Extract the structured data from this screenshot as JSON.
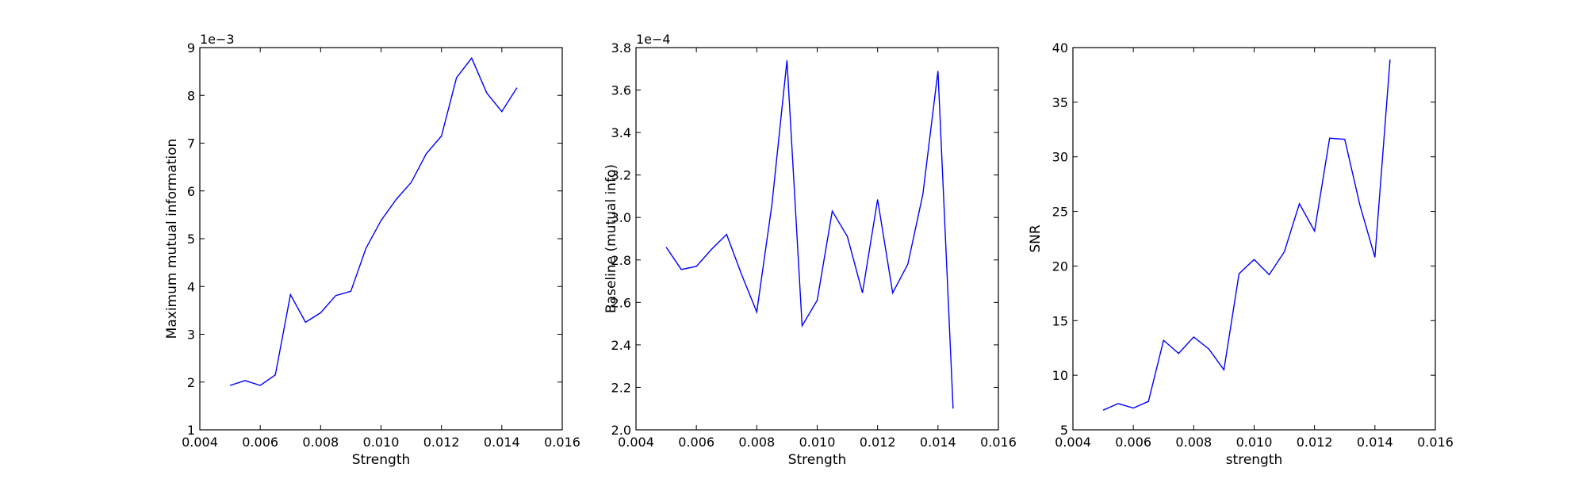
{
  "chart_data": [
    {
      "type": "line",
      "xlabel": "Strength",
      "ylabel": "Maximum mutual information",
      "multiplier": "1e−3",
      "xlim": [
        0.004,
        0.016
      ],
      "ylim": [
        1,
        9
      ],
      "xticks": [
        0.004,
        0.006,
        0.008,
        0.01,
        0.012,
        0.014,
        0.016
      ],
      "xtick_labels": [
        "0.004",
        "0.006",
        "0.008",
        "0.010",
        "0.012",
        "0.014",
        "0.016"
      ],
      "yticks": [
        1,
        2,
        3,
        4,
        5,
        6,
        7,
        8,
        9
      ],
      "ytick_labels": [
        "1",
        "2",
        "3",
        "4",
        "5",
        "6",
        "7",
        "8",
        "9"
      ],
      "color": "#0000ff",
      "grid": false,
      "x": [
        0.005,
        0.0055,
        0.006,
        0.0065,
        0.007,
        0.0075,
        0.008,
        0.0085,
        0.009,
        0.0095,
        0.01,
        0.0105,
        0.011,
        0.0115,
        0.012,
        0.0125,
        0.013,
        0.0135,
        0.014,
        0.0145
      ],
      "y": [
        1.93,
        2.03,
        1.93,
        2.15,
        3.83,
        3.25,
        3.45,
        3.81,
        3.9,
        4.8,
        5.38,
        5.82,
        6.18,
        6.78,
        7.15,
        8.37,
        8.78,
        8.05,
        7.66,
        8.16
      ]
    },
    {
      "type": "line",
      "xlabel": "Strength",
      "ylabel": "Baseline (mutual info)",
      "multiplier": "1e−4",
      "xlim": [
        0.004,
        0.016
      ],
      "ylim": [
        2.0,
        3.8
      ],
      "xticks": [
        0.004,
        0.006,
        0.008,
        0.01,
        0.012,
        0.014,
        0.016
      ],
      "xtick_labels": [
        "0.004",
        "0.006",
        "0.008",
        "0.010",
        "0.012",
        "0.014",
        "0.016"
      ],
      "yticks": [
        2.0,
        2.2,
        2.4,
        2.6,
        2.8,
        3.0,
        3.2,
        3.4,
        3.6,
        3.8
      ],
      "ytick_labels": [
        "2.0",
        "2.2",
        "2.4",
        "2.6",
        "2.8",
        "3.0",
        "3.2",
        "3.4",
        "3.6",
        "3.8"
      ],
      "color": "#0000ff",
      "grid": false,
      "x": [
        0.005,
        0.0055,
        0.006,
        0.0065,
        0.007,
        0.0075,
        0.008,
        0.0085,
        0.009,
        0.0095,
        0.01,
        0.0105,
        0.011,
        0.0115,
        0.012,
        0.0125,
        0.013,
        0.0135,
        0.014,
        0.0145
      ],
      "y": [
        2.86,
        2.755,
        2.77,
        2.85,
        2.92,
        2.73,
        2.555,
        3.06,
        3.74,
        2.49,
        2.61,
        3.03,
        2.91,
        2.645,
        3.085,
        2.645,
        2.78,
        3.11,
        3.69,
        2.1
      ]
    },
    {
      "type": "line",
      "xlabel": "strength",
      "ylabel": "SNR",
      "multiplier": "",
      "xlim": [
        0.004,
        0.016
      ],
      "ylim": [
        5,
        40
      ],
      "xticks": [
        0.004,
        0.006,
        0.008,
        0.01,
        0.012,
        0.014,
        0.016
      ],
      "xtick_labels": [
        "0.004",
        "0.006",
        "0.008",
        "0.010",
        "0.012",
        "0.014",
        "0.016"
      ],
      "yticks": [
        5,
        10,
        15,
        20,
        25,
        30,
        35,
        40
      ],
      "ytick_labels": [
        "5",
        "10",
        "15",
        "20",
        "25",
        "30",
        "35",
        "40"
      ],
      "color": "#0000ff",
      "grid": false,
      "x": [
        0.005,
        0.0055,
        0.006,
        0.0065,
        0.007,
        0.0075,
        0.008,
        0.0085,
        0.009,
        0.0095,
        0.01,
        0.0105,
        0.011,
        0.0115,
        0.012,
        0.0125,
        0.013,
        0.0135,
        0.014,
        0.0145
      ],
      "y": [
        6.8,
        7.4,
        7.0,
        7.6,
        13.2,
        12.0,
        13.5,
        12.4,
        10.5,
        19.3,
        20.6,
        19.2,
        21.3,
        25.7,
        23.2,
        31.7,
        31.6,
        25.6,
        20.8,
        38.9
      ]
    }
  ]
}
